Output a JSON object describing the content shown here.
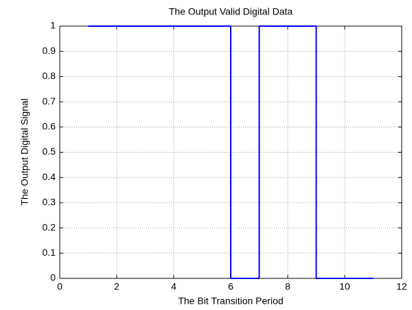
{
  "chart_data": {
    "type": "stairs",
    "title": "The Output Valid Digital Data",
    "x_label": "The Bit Transition Period",
    "y_label": "The Output Digital Signal",
    "x": [
      1,
      2,
      3,
      4,
      5,
      6,
      7,
      8,
      9,
      10,
      11
    ],
    "values": [
      1,
      1,
      1,
      1,
      1,
      0,
      1,
      1,
      0,
      0,
      0
    ],
    "color": "#0000ff",
    "xlim": [
      0,
      12
    ],
    "xticks": [
      0,
      2,
      4,
      6,
      8,
      10,
      12
    ],
    "ylim": [
      0,
      1
    ],
    "yticks": [
      0,
      0.1,
      0.2,
      0.3,
      0.4,
      0.5,
      0.6,
      0.7,
      0.8,
      0.9,
      1
    ],
    "grid": true
  }
}
